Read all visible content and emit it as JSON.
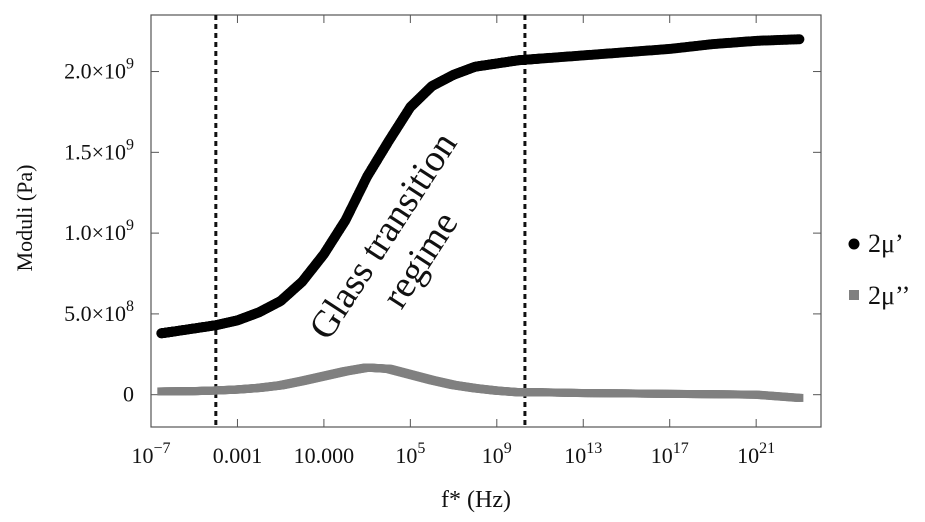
{
  "chart_data": {
    "type": "scatter",
    "xlabel": "f* (Hz)",
    "ylabel": "Moduli (Pa)",
    "x_scale": "log",
    "xlim": [
      1e-07,
      1e+24
    ],
    "ylim": [
      -200000000.0,
      2350000000.0
    ],
    "x_ticks": [
      {
        "value": 1e-07,
        "base": "10",
        "exp": "−7"
      },
      {
        "value": 0.001,
        "text": "0.001"
      },
      {
        "value": 10,
        "text": "10.000"
      },
      {
        "value": 100000.0,
        "base": "10",
        "exp": "5"
      },
      {
        "value": 1000000000.0,
        "base": "10",
        "exp": "9"
      },
      {
        "value": 10000000000000.0,
        "base": "10",
        "exp": "13"
      },
      {
        "value": 1e+17,
        "base": "10",
        "exp": "17"
      },
      {
        "value": 1e+21,
        "base": "10",
        "exp": "21"
      }
    ],
    "y_ticks": [
      {
        "value": 0,
        "mant": "0"
      },
      {
        "value": 500000000.0,
        "mant": "5.0",
        "exp": "8"
      },
      {
        "value": 1000000000.0,
        "mant": "1.0",
        "exp": "9"
      },
      {
        "value": 1500000000.0,
        "mant": "1.5",
        "exp": "9"
      },
      {
        "value": 2000000000.0,
        "mant": "2.0",
        "exp": "9"
      }
    ],
    "vlines": [
      0.0001,
      20000000000.0
    ],
    "annotation": [
      "Glass transition",
      "regime"
    ],
    "series": [
      {
        "name": "2μ’",
        "marker": "circle",
        "color": "#000000",
        "points": [
          [
            3e-07,
            380000000.0
          ],
          [
            1e-06,
            390000000.0
          ],
          [
            1e-05,
            410000000.0
          ],
          [
            0.0001,
            430000000.0
          ],
          [
            0.001,
            460000000.0
          ],
          [
            0.01,
            510000000.0
          ],
          [
            0.1,
            580000000.0
          ],
          [
            1,
            700000000.0
          ],
          [
            10,
            870000000.0
          ],
          [
            100,
            1080000000.0
          ],
          [
            1000,
            1350000000.0
          ],
          [
            10000.0,
            1570000000.0
          ],
          [
            100000.0,
            1780000000.0
          ],
          [
            1000000.0,
            1910000000.0
          ],
          [
            10000000.0,
            1980000000.0
          ],
          [
            100000000.0,
            2030000000.0
          ],
          [
            1000000000.0,
            2050000000.0
          ],
          [
            10000000000.0,
            2070000000.0
          ],
          [
            100000000000.0,
            2080000000.0
          ],
          [
            10000000000000.0,
            2100000000.0
          ],
          [
            1000000000000000.0,
            2120000000.0
          ],
          [
            1e+17,
            2140000000.0
          ],
          [
            1e+19,
            2170000000.0
          ],
          [
            1e+21,
            2190000000.0
          ],
          [
            1e+23,
            2200000000.0
          ]
        ]
      },
      {
        "name": "2μ’’",
        "marker": "square",
        "color": "#808080",
        "points": [
          [
            3e-07,
            20000000.0
          ],
          [
            1e-05,
            22000000.0
          ],
          [
            0.0001,
            26000000.0
          ],
          [
            0.001,
            32000000.0
          ],
          [
            0.01,
            42000000.0
          ],
          [
            0.1,
            58000000.0
          ],
          [
            1,
            85000000.0
          ],
          [
            10,
            115000000.0
          ],
          [
            100,
            145000000.0
          ],
          [
            1000,
            168000000.0
          ],
          [
            10000.0,
            160000000.0
          ],
          [
            100000.0,
            125000000.0
          ],
          [
            1000000.0,
            90000000.0
          ],
          [
            10000000.0,
            60000000.0
          ],
          [
            100000000.0,
            40000000.0
          ],
          [
            1000000000.0,
            25000000.0
          ],
          [
            10000000000.0,
            15000000.0
          ],
          [
            100000000000.0,
            15000000.0
          ],
          [
            10000000000000.0,
            10000000.0
          ],
          [
            1000000000000000.0,
            8000000.0
          ],
          [
            1e+17,
            5000000.0
          ],
          [
            1e+19,
            3000000.0
          ],
          [
            1e+21,
            0
          ],
          [
            1e+23,
            -20000000.0
          ]
        ]
      }
    ],
    "legend_position": "right"
  }
}
